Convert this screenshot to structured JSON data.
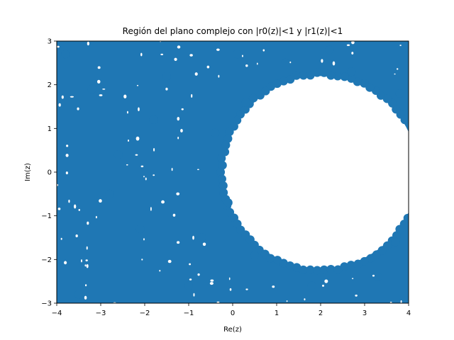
{
  "chart_data": {
    "type": "scatter",
    "title": "Región del plano complejo con |r0(z)|<1 y |r1(z)|<1",
    "xlabel": "Re(z)",
    "ylabel": "Im(z)",
    "xlim": [
      -4,
      4
    ],
    "ylim": [
      -3,
      3
    ],
    "xticks": [
      -4,
      -3,
      -2,
      -1,
      0,
      1,
      2,
      3,
      4
    ],
    "yticks": [
      -3,
      -2,
      -1,
      0,
      1,
      2,
      3
    ],
    "xtick_labels": [
      "−4",
      "−3",
      "−2",
      "−1",
      "0",
      "1",
      "2",
      "3",
      "4"
    ],
    "ytick_labels": [
      "−3",
      "−2",
      "−1",
      "0",
      "1",
      "2",
      "3"
    ],
    "grid": false,
    "series": [
      {
        "color": "#1f77b4",
        "marker": "o",
        "region_description": "dense points filling the rectangle except a disk",
        "excluded_disk": {
          "center_re": 2.0,
          "center_im": 0.0,
          "radius": 2.2
        },
        "sample_points": [
          [
            -3.8,
            2.7
          ],
          [
            -3.2,
            1.9
          ],
          [
            -2.6,
            0.4
          ],
          [
            -2.1,
            -1.3
          ],
          [
            -1.5,
            2.2
          ],
          [
            -1.0,
            -2.6
          ],
          [
            -0.4,
            0.9
          ],
          [
            -0.1,
            -0.7
          ],
          [
            0.3,
            1.6
          ],
          [
            0.5,
            -1.9
          ],
          [
            1.2,
            2.5
          ],
          [
            1.8,
            -2.6
          ],
          [
            2.7,
            2.3
          ],
          [
            3.3,
            -2.4
          ],
          [
            3.8,
            1.8
          ],
          [
            3.7,
            -1.6
          ],
          [
            -3.5,
            -2.8
          ],
          [
            -2.8,
            -0.5
          ],
          [
            -1.8,
            1.2
          ],
          [
            -0.7,
            -1.5
          ],
          [
            0.1,
            2.7
          ],
          [
            2.2,
            2.8
          ],
          [
            3.9,
            2.9
          ],
          [
            3.9,
            -2.9
          ]
        ]
      }
    ]
  }
}
